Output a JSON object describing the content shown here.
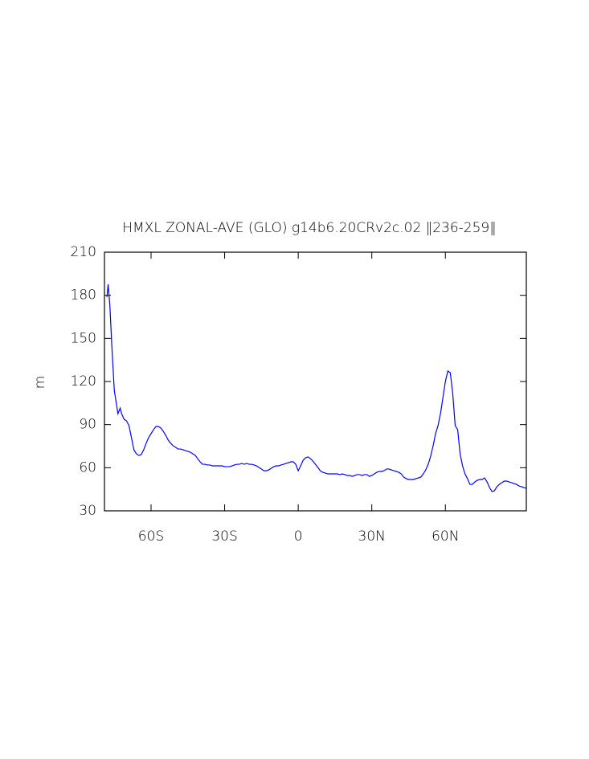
{
  "chart_data": {
    "type": "line",
    "title": "HMXL ZONAL-AVE (GLO) g14b6.20CRv2c.02 ‖236-259‖",
    "y_label": "m",
    "xlim": [
      -79,
      93
    ],
    "ylim": [
      30,
      210
    ],
    "xticks": [
      {
        "value": -60,
        "label": "60S"
      },
      {
        "value": -30,
        "label": "30S"
      },
      0,
      {
        "value": 30,
        "label": "30N"
      },
      {
        "value": 60,
        "label": "60N"
      }
    ],
    "yticks": [
      30,
      60,
      90,
      120,
      150,
      180,
      210
    ],
    "grid": false,
    "x": [
      -78,
      -77.5,
      -76.8,
      -76,
      -75,
      -74,
      -73.5,
      -72.6,
      -72,
      -71,
      -70,
      -69,
      -68,
      -67,
      -66,
      -65,
      -64,
      -63,
      -62,
      -61,
      -60,
      -59,
      -58,
      -57,
      -56,
      -55,
      -54,
      -53,
      -52,
      -51,
      -50,
      -49,
      -48,
      -47,
      -46,
      -45,
      -44,
      -43,
      -42,
      -41,
      -40,
      -39,
      -38,
      -37,
      -36,
      -35,
      -34,
      -33,
      -32,
      -31,
      -30,
      -29,
      -28,
      -27,
      -26,
      -25,
      -24,
      -23,
      -22,
      -21,
      -20,
      -19,
      -18,
      -17,
      -16,
      -15,
      -14,
      -13,
      -12,
      -11,
      -10,
      -9,
      -8,
      -7,
      -6,
      -5,
      -4,
      -3,
      -2,
      -1,
      0,
      1,
      2,
      3,
      4,
      5,
      6,
      7,
      8,
      9,
      10,
      11,
      12,
      13,
      14,
      15,
      16,
      17,
      18,
      19,
      20,
      21,
      22,
      23,
      24,
      25,
      26,
      27,
      28,
      29,
      30,
      31,
      32,
      33,
      34,
      35,
      36,
      37,
      38,
      39,
      40,
      41,
      42,
      43,
      44,
      45,
      46,
      47,
      48,
      49,
      50,
      51,
      52,
      53,
      54,
      55,
      56,
      57,
      58,
      59,
      60,
      61,
      62,
      63,
      64,
      65,
      66,
      67,
      68,
      69,
      70,
      71,
      72,
      73,
      74,
      75,
      76,
      77,
      78,
      79,
      80,
      81,
      82,
      83,
      84,
      85,
      86,
      87,
      88,
      89,
      90,
      91,
      92,
      93
    ],
    "series": [
      {
        "color": "#0000ff",
        "values": [
          178.7,
          187.6,
          173,
          145,
          114,
          103,
          97.6,
          101.5,
          97.6,
          93.7,
          92.6,
          89.3,
          81,
          72.5,
          69.7,
          68.6,
          69.1,
          72.5,
          77,
          81,
          83.7,
          86.5,
          88.7,
          88.7,
          87.6,
          85.3,
          82.5,
          79.2,
          77,
          75.3,
          74.2,
          73,
          73,
          72.5,
          71.9,
          71.4,
          70.8,
          69.7,
          68.6,
          66.3,
          64.1,
          62.4,
          62.4,
          61.9,
          61.9,
          61.3,
          61.3,
          61.3,
          61.3,
          61.3,
          60.7,
          60.7,
          60.7,
          61.3,
          61.9,
          62.4,
          62.4,
          63,
          62.4,
          63,
          62.4,
          62.4,
          61.9,
          61.3,
          60.2,
          59.1,
          57.9,
          57.9,
          58.5,
          59.6,
          60.7,
          61.3,
          61.3,
          61.9,
          62.4,
          63,
          63.5,
          64.1,
          64.1,
          62.4,
          57.9,
          61.3,
          65.2,
          66.9,
          67.5,
          66.3,
          64.6,
          62.4,
          60.2,
          57.9,
          56.8,
          56.3,
          55.7,
          55.7,
          55.7,
          55.7,
          55.7,
          55.2,
          55.7,
          55.2,
          54.6,
          54.6,
          54,
          54.6,
          55.2,
          55.2,
          54.6,
          55.2,
          55.2,
          54,
          54.6,
          55.7,
          56.8,
          57.4,
          57.4,
          57.9,
          59.1,
          59.1,
          58.5,
          57.9,
          57.4,
          56.8,
          55.7,
          53.5,
          52.4,
          51.8,
          51.8,
          51.8,
          52.4,
          52.9,
          53.5,
          55.7,
          58.5,
          62.4,
          68,
          75.3,
          83.7,
          89.3,
          97.6,
          108.8,
          120,
          127.3,
          126.1,
          111.6,
          89.3,
          86.5,
          69.7,
          61.3,
          55.7,
          52.4,
          48.4,
          48.4,
          50.1,
          51.2,
          51.8,
          51.8,
          52.9,
          50.1,
          46.2,
          43.4,
          44,
          46.8,
          48.4,
          49.6,
          50.7,
          50.7,
          50.1,
          49.6,
          49,
          48.4,
          47.3,
          46.8,
          46.2,
          45.6
        ]
      }
    ]
  }
}
